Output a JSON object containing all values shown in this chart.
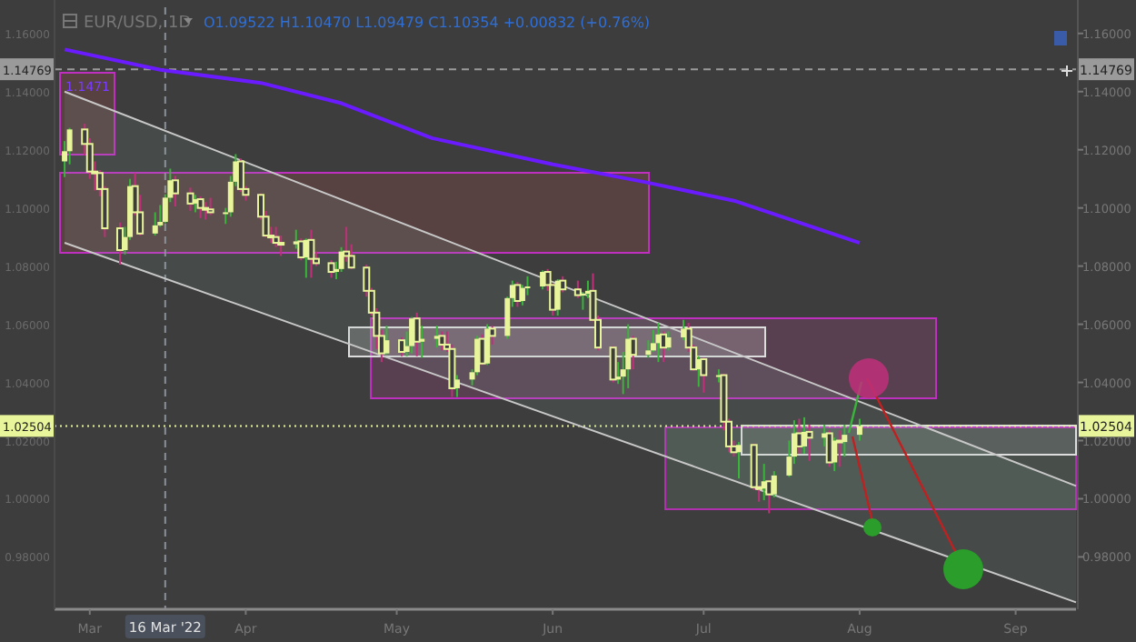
{
  "chart_data": {
    "type": "candlestick",
    "title": "EUR/USD, 1D",
    "subtitle": "O1.09522  H1.10470  L1.09479  C1.10354  +0.00832 (+0.76%)",
    "annotations": [
      "1.1471"
    ],
    "xlim": [
      "2022-02-22",
      "2022-09-13"
    ],
    "xticks": [
      {
        "value": "2022-03-01",
        "label": "Mar"
      },
      {
        "value": "2022-04-01",
        "label": "Apr"
      },
      {
        "value": "2022-05-01",
        "label": "May"
      },
      {
        "value": "2022-06-01",
        "label": "Jun"
      },
      {
        "value": "2022-07-01",
        "label": "Jul"
      },
      {
        "value": "2022-08-01",
        "label": "Aug"
      },
      {
        "value": "2022-09-01",
        "label": "Sep"
      }
    ],
    "ylim": [
      0.962,
      1.169
    ],
    "yticks": [
      {
        "value": 0.98,
        "label": "0.98000"
      },
      {
        "value": 1.0,
        "label": "1.00000"
      },
      {
        "value": 1.02,
        "label": "1.02000"
      },
      {
        "value": 1.04,
        "label": "1.04000"
      },
      {
        "value": 1.06,
        "label": "1.06000"
      },
      {
        "value": 1.08,
        "label": "1.08000"
      },
      {
        "value": 1.1,
        "label": "1.10000"
      },
      {
        "value": 1.12,
        "label": "1.12000"
      },
      {
        "value": 1.14,
        "label": "1.14000"
      },
      {
        "value": 1.16,
        "label": "1.16000"
      }
    ],
    "y2lim": [
      0.962,
      1.169
    ],
    "y2ticks": [
      {
        "value": 0.98,
        "label": "0.98000"
      },
      {
        "value": 1.0,
        "label": "1.00000"
      },
      {
        "value": 1.02,
        "label": "1.02000"
      },
      {
        "value": 1.04,
        "label": "1.04000"
      },
      {
        "value": 1.06,
        "label": "1.06000"
      },
      {
        "value": 1.08,
        "label": "1.08000"
      },
      {
        "value": 1.1,
        "label": "1.10000"
      },
      {
        "value": 1.12,
        "label": "1.12000"
      },
      {
        "value": 1.14,
        "label": "1.14000"
      },
      {
        "value": 1.16,
        "label": "1.16000"
      }
    ],
    "grid": false,
    "ref_lines": [
      {
        "axis": "y",
        "value": 1.14769,
        "label": "1.14769",
        "color": "#9a9a9a",
        "line_style": "dashed"
      },
      {
        "axis": "y",
        "value": 1.02504,
        "label": "1.02504",
        "color": "#e9f59a",
        "line_style": "dotted"
      },
      {
        "axis": "x",
        "value": "2022-03-16",
        "label": "16 Mar '22",
        "color": "#8a8f99",
        "line_style": "dashed"
      }
    ],
    "series": [
      {
        "type": "line",
        "color": "#6a1bff",
        "x": [
          "2022-02-24",
          "2022-03-15",
          "2022-04-04",
          "2022-04-20",
          "2022-05-08",
          "2022-06-01",
          "2022-06-19",
          "2022-07-07",
          "2022-08-01"
        ],
        "values": [
          1.1545,
          1.1475,
          1.143,
          1.136,
          1.124,
          1.115,
          1.109,
          1.1025,
          1.088
        ]
      },
      {
        "type": "line",
        "color": "#c8c8c8",
        "x": [
          "2022-02-24",
          "2022-09-13"
        ],
        "values": [
          1.14,
          1.0044
        ],
        "lower": [
          1.088,
          0.9644
        ],
        "upper": [
          1.14,
          1.0044
        ]
      },
      {
        "type": "line",
        "color": "#c8c8c8",
        "x": [
          "2022-02-24",
          "2022-09-13"
        ],
        "values": [
          1.088,
          0.9644
        ]
      },
      {
        "color": "#e9f59a",
        "x": [
          "2022-02-24",
          "2022-02-25",
          "2022-02-28",
          "2022-03-01",
          "2022-03-02",
          "2022-03-03",
          "2022-03-04",
          "2022-03-07",
          "2022-03-08",
          "2022-03-09",
          "2022-03-10",
          "2022-03-11",
          "2022-03-14",
          "2022-03-15",
          "2022-03-16",
          "2022-03-17",
          "2022-03-18",
          "2022-03-21",
          "2022-03-22",
          "2022-03-23",
          "2022-03-24",
          "2022-03-25",
          "2022-03-28",
          "2022-03-29",
          "2022-03-30",
          "2022-03-31",
          "2022-04-01",
          "2022-04-04",
          "2022-04-05",
          "2022-04-06",
          "2022-04-07",
          "2022-04-08",
          "2022-04-11",
          "2022-04-12",
          "2022-04-13",
          "2022-04-14",
          "2022-04-15",
          "2022-04-18",
          "2022-04-19",
          "2022-04-20",
          "2022-04-21",
          "2022-04-22",
          "2022-04-25",
          "2022-04-26",
          "2022-04-27",
          "2022-04-28",
          "2022-04-29",
          "2022-05-02",
          "2022-05-03",
          "2022-05-04",
          "2022-05-05",
          "2022-05-06",
          "2022-05-09",
          "2022-05-10",
          "2022-05-11",
          "2022-05-12",
          "2022-05-13",
          "2022-05-16",
          "2022-05-17",
          "2022-05-18",
          "2022-05-19",
          "2022-05-20",
          "2022-05-23",
          "2022-05-24",
          "2022-05-25",
          "2022-05-26",
          "2022-05-27",
          "2022-05-30",
          "2022-05-31",
          "2022-06-01",
          "2022-06-02",
          "2022-06-03",
          "2022-06-06",
          "2022-06-07",
          "2022-06-08",
          "2022-06-09",
          "2022-06-10",
          "2022-06-13",
          "2022-06-14",
          "2022-06-15",
          "2022-06-16",
          "2022-06-17",
          "2022-06-20",
          "2022-06-21",
          "2022-06-22",
          "2022-06-23",
          "2022-06-24",
          "2022-06-27",
          "2022-06-28",
          "2022-06-29",
          "2022-06-30",
          "2022-07-01",
          "2022-07-04",
          "2022-07-05",
          "2022-07-06",
          "2022-07-07",
          "2022-07-08",
          "2022-07-11",
          "2022-07-12",
          "2022-07-13",
          "2022-07-14",
          "2022-07-15",
          "2022-07-18",
          "2022-07-19",
          "2022-07-20",
          "2022-07-21",
          "2022-07-22",
          "2022-07-25",
          "2022-07-26",
          "2022-07-27",
          "2022-07-28",
          "2022-07-29",
          "2022-08-01"
        ],
        "ohlc": [
          [
            1.116,
            1.123,
            1.1106,
            1.1195
          ],
          [
            1.1195,
            1.1275,
            1.115,
            1.127
          ],
          [
            1.127,
            1.129,
            1.118,
            1.122
          ],
          [
            1.122,
            1.124,
            1.11,
            1.1125
          ],
          [
            1.1125,
            1.116,
            1.106,
            1.112
          ],
          [
            1.112,
            1.113,
            1.104,
            1.1065
          ],
          [
            1.1065,
            1.1075,
            1.09,
            1.093
          ],
          [
            1.093,
            1.095,
            1.0805,
            1.0855
          ],
          [
            1.0855,
            1.0935,
            1.084,
            1.09
          ],
          [
            1.09,
            1.11,
            1.089,
            1.1075
          ],
          [
            1.1075,
            1.112,
            1.0975,
            1.0985
          ],
          [
            1.0985,
            1.1045,
            1.0905,
            1.0912
          ],
          [
            1.0912,
            1.0985,
            1.0905,
            1.094
          ],
          [
            1.094,
            1.101,
            1.0935,
            1.0952
          ],
          [
            1.09522,
            1.1047,
            1.09479,
            1.10354
          ],
          [
            1.1035,
            1.1135,
            1.102,
            1.1095
          ],
          [
            1.1095,
            1.111,
            1.1005,
            1.105
          ],
          [
            1.105,
            1.107,
            1.099,
            1.1015
          ],
          [
            1.1015,
            1.1045,
            1.0985,
            1.103
          ],
          [
            1.103,
            1.104,
            1.0965,
            1.1
          ],
          [
            1.1,
            1.102,
            1.096,
            1.0995
          ],
          [
            1.0995,
            1.1035,
            1.0975,
            1.0985
          ],
          [
            1.0985,
            1.1,
            1.0945,
            1.0985
          ],
          [
            1.0985,
            1.111,
            1.097,
            1.109
          ],
          [
            1.109,
            1.1185,
            1.1075,
            1.116
          ],
          [
            1.116,
            1.117,
            1.1055,
            1.1065
          ],
          [
            1.1065,
            1.1075,
            1.1025,
            1.1045
          ],
          [
            1.1045,
            1.105,
            1.096,
            1.097
          ],
          [
            1.097,
            1.099,
            1.09,
            1.0905
          ],
          [
            1.0905,
            1.0935,
            1.088,
            1.09
          ],
          [
            1.09,
            1.0935,
            1.0865,
            1.088
          ],
          [
            1.088,
            1.0905,
            1.0835,
            1.0875
          ],
          [
            1.0875,
            1.0925,
            1.086,
            1.0885
          ],
          [
            1.0885,
            1.0895,
            1.082,
            1.083
          ],
          [
            1.083,
            1.0895,
            1.076,
            1.089
          ],
          [
            1.089,
            1.0925,
            1.076,
            1.0825
          ],
          [
            1.0825,
            1.085,
            1.08,
            1.081
          ],
          [
            1.081,
            1.082,
            1.076,
            1.078
          ],
          [
            1.078,
            1.0815,
            1.0755,
            1.079
          ],
          [
            1.079,
            1.0865,
            1.078,
            1.085
          ],
          [
            1.085,
            1.0935,
            1.0815,
            1.0835
          ],
          [
            1.0835,
            1.0875,
            1.079,
            1.0795
          ],
          [
            1.0795,
            1.0805,
            1.0695,
            1.0715
          ],
          [
            1.0715,
            1.0725,
            1.063,
            1.064
          ],
          [
            1.064,
            1.0655,
            1.0515,
            1.056
          ],
          [
            1.056,
            1.058,
            1.047,
            1.05
          ],
          [
            1.05,
            1.0595,
            1.0495,
            1.0545
          ],
          [
            1.0545,
            1.0555,
            1.049,
            1.0505
          ],
          [
            1.0505,
            1.0575,
            1.049,
            1.0525
          ],
          [
            1.0525,
            1.0625,
            1.05,
            1.062
          ],
          [
            1.062,
            1.064,
            1.049,
            1.054
          ],
          [
            1.054,
            1.0595,
            1.0485,
            1.055
          ],
          [
            1.055,
            1.0595,
            1.052,
            1.056
          ],
          [
            1.056,
            1.0575,
            1.051,
            1.053
          ],
          [
            1.053,
            1.0575,
            1.0505,
            1.0515
          ],
          [
            1.0515,
            1.053,
            1.035,
            1.038
          ],
          [
            1.038,
            1.0425,
            1.035,
            1.041
          ],
          [
            1.041,
            1.0445,
            1.039,
            1.0435
          ],
          [
            1.0435,
            1.056,
            1.0425,
            1.055
          ],
          [
            1.055,
            1.0565,
            1.046,
            1.0465
          ],
          [
            1.0465,
            1.06,
            1.046,
            1.0585
          ],
          [
            1.0585,
            1.0595,
            1.053,
            1.056
          ],
          [
            1.056,
            1.0695,
            1.055,
            1.069
          ],
          [
            1.069,
            1.075,
            1.066,
            1.0735
          ],
          [
            1.0735,
            1.0745,
            1.066,
            1.068
          ],
          [
            1.068,
            1.0735,
            1.0665,
            1.0725
          ],
          [
            1.0725,
            1.0765,
            1.07,
            1.073
          ],
          [
            1.073,
            1.0785,
            1.072,
            1.078
          ],
          [
            1.078,
            1.079,
            1.0715,
            1.0735
          ],
          [
            1.0735,
            1.074,
            1.063,
            1.065
          ],
          [
            1.065,
            1.0755,
            1.063,
            1.075
          ],
          [
            1.075,
            1.0765,
            1.071,
            1.072
          ],
          [
            1.072,
            1.075,
            1.069,
            1.07
          ],
          [
            1.07,
            1.071,
            1.065,
            1.0705
          ],
          [
            1.0705,
            1.075,
            1.069,
            1.0715
          ],
          [
            1.0715,
            1.0775,
            1.061,
            1.0615
          ],
          [
            1.0615,
            1.063,
            1.051,
            1.052
          ],
          [
            1.052,
            1.0525,
            1.04,
            1.041
          ],
          [
            1.041,
            1.047,
            1.0395,
            1.042
          ],
          [
            1.042,
            1.0505,
            1.036,
            1.0445
          ],
          [
            1.0445,
            1.06,
            1.038,
            1.055
          ],
          [
            1.055,
            1.056,
            1.0445,
            1.0495
          ],
          [
            1.0495,
            1.0545,
            1.0485,
            1.051
          ],
          [
            1.051,
            1.058,
            1.0505,
            1.0535
          ],
          [
            1.0535,
            1.0605,
            1.047,
            1.0565
          ],
          [
            1.0565,
            1.0575,
            1.047,
            1.052
          ],
          [
            1.052,
            1.0575,
            1.051,
            1.0555
          ],
          [
            1.0555,
            1.0615,
            1.0545,
            1.0585
          ],
          [
            1.0585,
            1.0605,
            1.0505,
            1.052
          ],
          [
            1.052,
            1.053,
            1.044,
            1.0445
          ],
          [
            1.0445,
            1.049,
            1.0385,
            1.048
          ],
          [
            1.048,
            1.0485,
            1.0365,
            1.0425
          ],
          [
            1.0425,
            1.0445,
            1.04,
            1.0425
          ],
          [
            1.0425,
            1.043,
            1.0235,
            1.0265
          ],
          [
            1.0265,
            1.0275,
            1.016,
            1.018
          ],
          [
            1.018,
            1.02,
            1.0145,
            1.016
          ],
          [
            1.016,
            1.0195,
            1.007,
            1.0185
          ],
          [
            1.0185,
            1.019,
            1.003,
            1.004
          ],
          [
            1.004,
            1.0045,
            0.999,
            1.0035
          ],
          [
            1.0035,
            1.012,
            0.9995,
            1.006
          ],
          [
            1.006,
            1.0065,
            0.995,
            1.0015
          ],
          [
            1.0015,
            1.0095,
            1.0005,
            1.008
          ],
          [
            1.008,
            1.02,
            1.0075,
            1.0145
          ],
          [
            1.0145,
            1.027,
            1.012,
            1.0225
          ],
          [
            1.0225,
            1.0275,
            1.0155,
            1.018
          ],
          [
            1.018,
            1.028,
            1.0155,
            1.023
          ],
          [
            1.023,
            1.0255,
            1.013,
            1.021
          ],
          [
            1.021,
            1.0255,
            1.018,
            1.0225
          ],
          [
            1.0225,
            1.0235,
            1.011,
            1.0125
          ],
          [
            1.0125,
            1.021,
            1.0095,
            1.02
          ],
          [
            1.02,
            1.0235,
            1.011,
            1.0195
          ],
          [
            1.0195,
            1.0255,
            1.0145,
            1.022
          ],
          [
            1.022,
            1.0275,
            1.02,
            1.02504
          ]
        ]
      }
    ]
  }
}
